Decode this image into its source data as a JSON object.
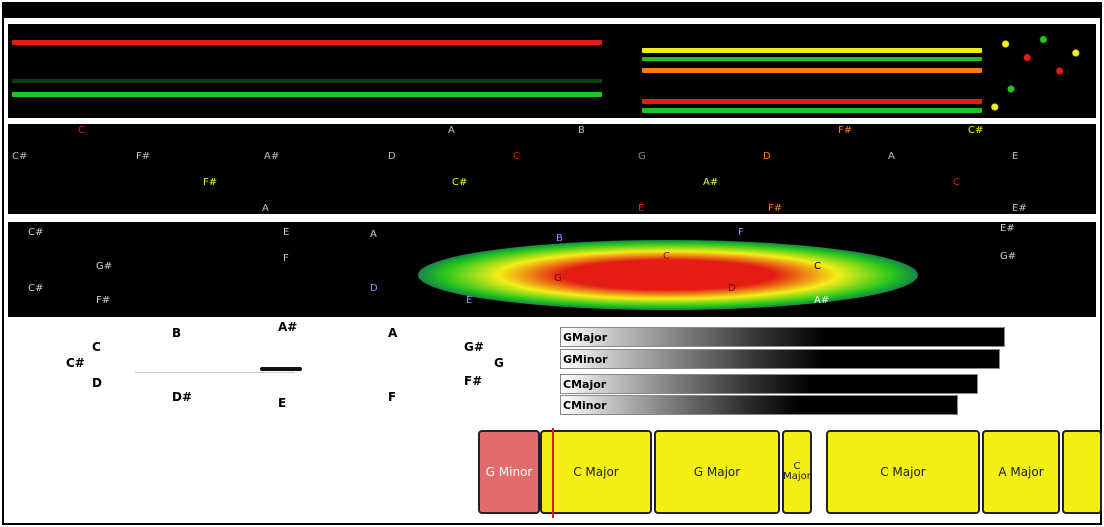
{
  "colors": {
    "red": "#e41c14",
    "green": "#22c41c",
    "yellow": "#f4ee18",
    "black": "#000000"
  },
  "chroma_rows": [
    [
      "C",
      "",
      "",
      "",
      "A",
      "B",
      "",
      "F#",
      "C#"
    ],
    [
      "C#",
      "F#",
      "A#",
      "D",
      "",
      "C",
      "G",
      "D",
      "A",
      "E"
    ],
    [
      "",
      "",
      "F#",
      "",
      "C#",
      "",
      "A#",
      "",
      "",
      "C"
    ],
    [
      "",
      "",
      "A",
      "",
      "",
      "E",
      "F#",
      "",
      "",
      "E#"
    ]
  ],
  "tonnetz": {
    "left": [
      "C#",
      "G#",
      "C#",
      "F#",
      "F",
      "E",
      "A",
      "D"
    ],
    "center": [
      "B",
      "F",
      "C",
      "C",
      "G",
      "D",
      "E",
      "A#"
    ],
    "right": [
      "E#",
      "G#"
    ]
  },
  "note_wheel": [
    "C",
    "C#",
    "D",
    "B",
    "D#",
    "A#",
    "E",
    "A",
    "F",
    "G#",
    "G",
    "F#"
  ],
  "key_bars": [
    {
      "label": "GMajor",
      "value": 0.95
    },
    {
      "label": "GMinor",
      "value": 0.94
    },
    {
      "label": "CMajor",
      "value": 0.9
    },
    {
      "label": "CMinor",
      "value": 0.88
    }
  ],
  "chords": [
    {
      "label": "G Minor",
      "type": "minor"
    },
    {
      "label": "C Major",
      "type": "major"
    },
    {
      "label": "G Major",
      "type": "major"
    },
    {
      "label": "C Major",
      "type": "major"
    },
    {
      "label": "C Major",
      "type": "major"
    },
    {
      "label": "A Major",
      "type": "major"
    },
    {
      "label": "",
      "type": "major"
    }
  ]
}
